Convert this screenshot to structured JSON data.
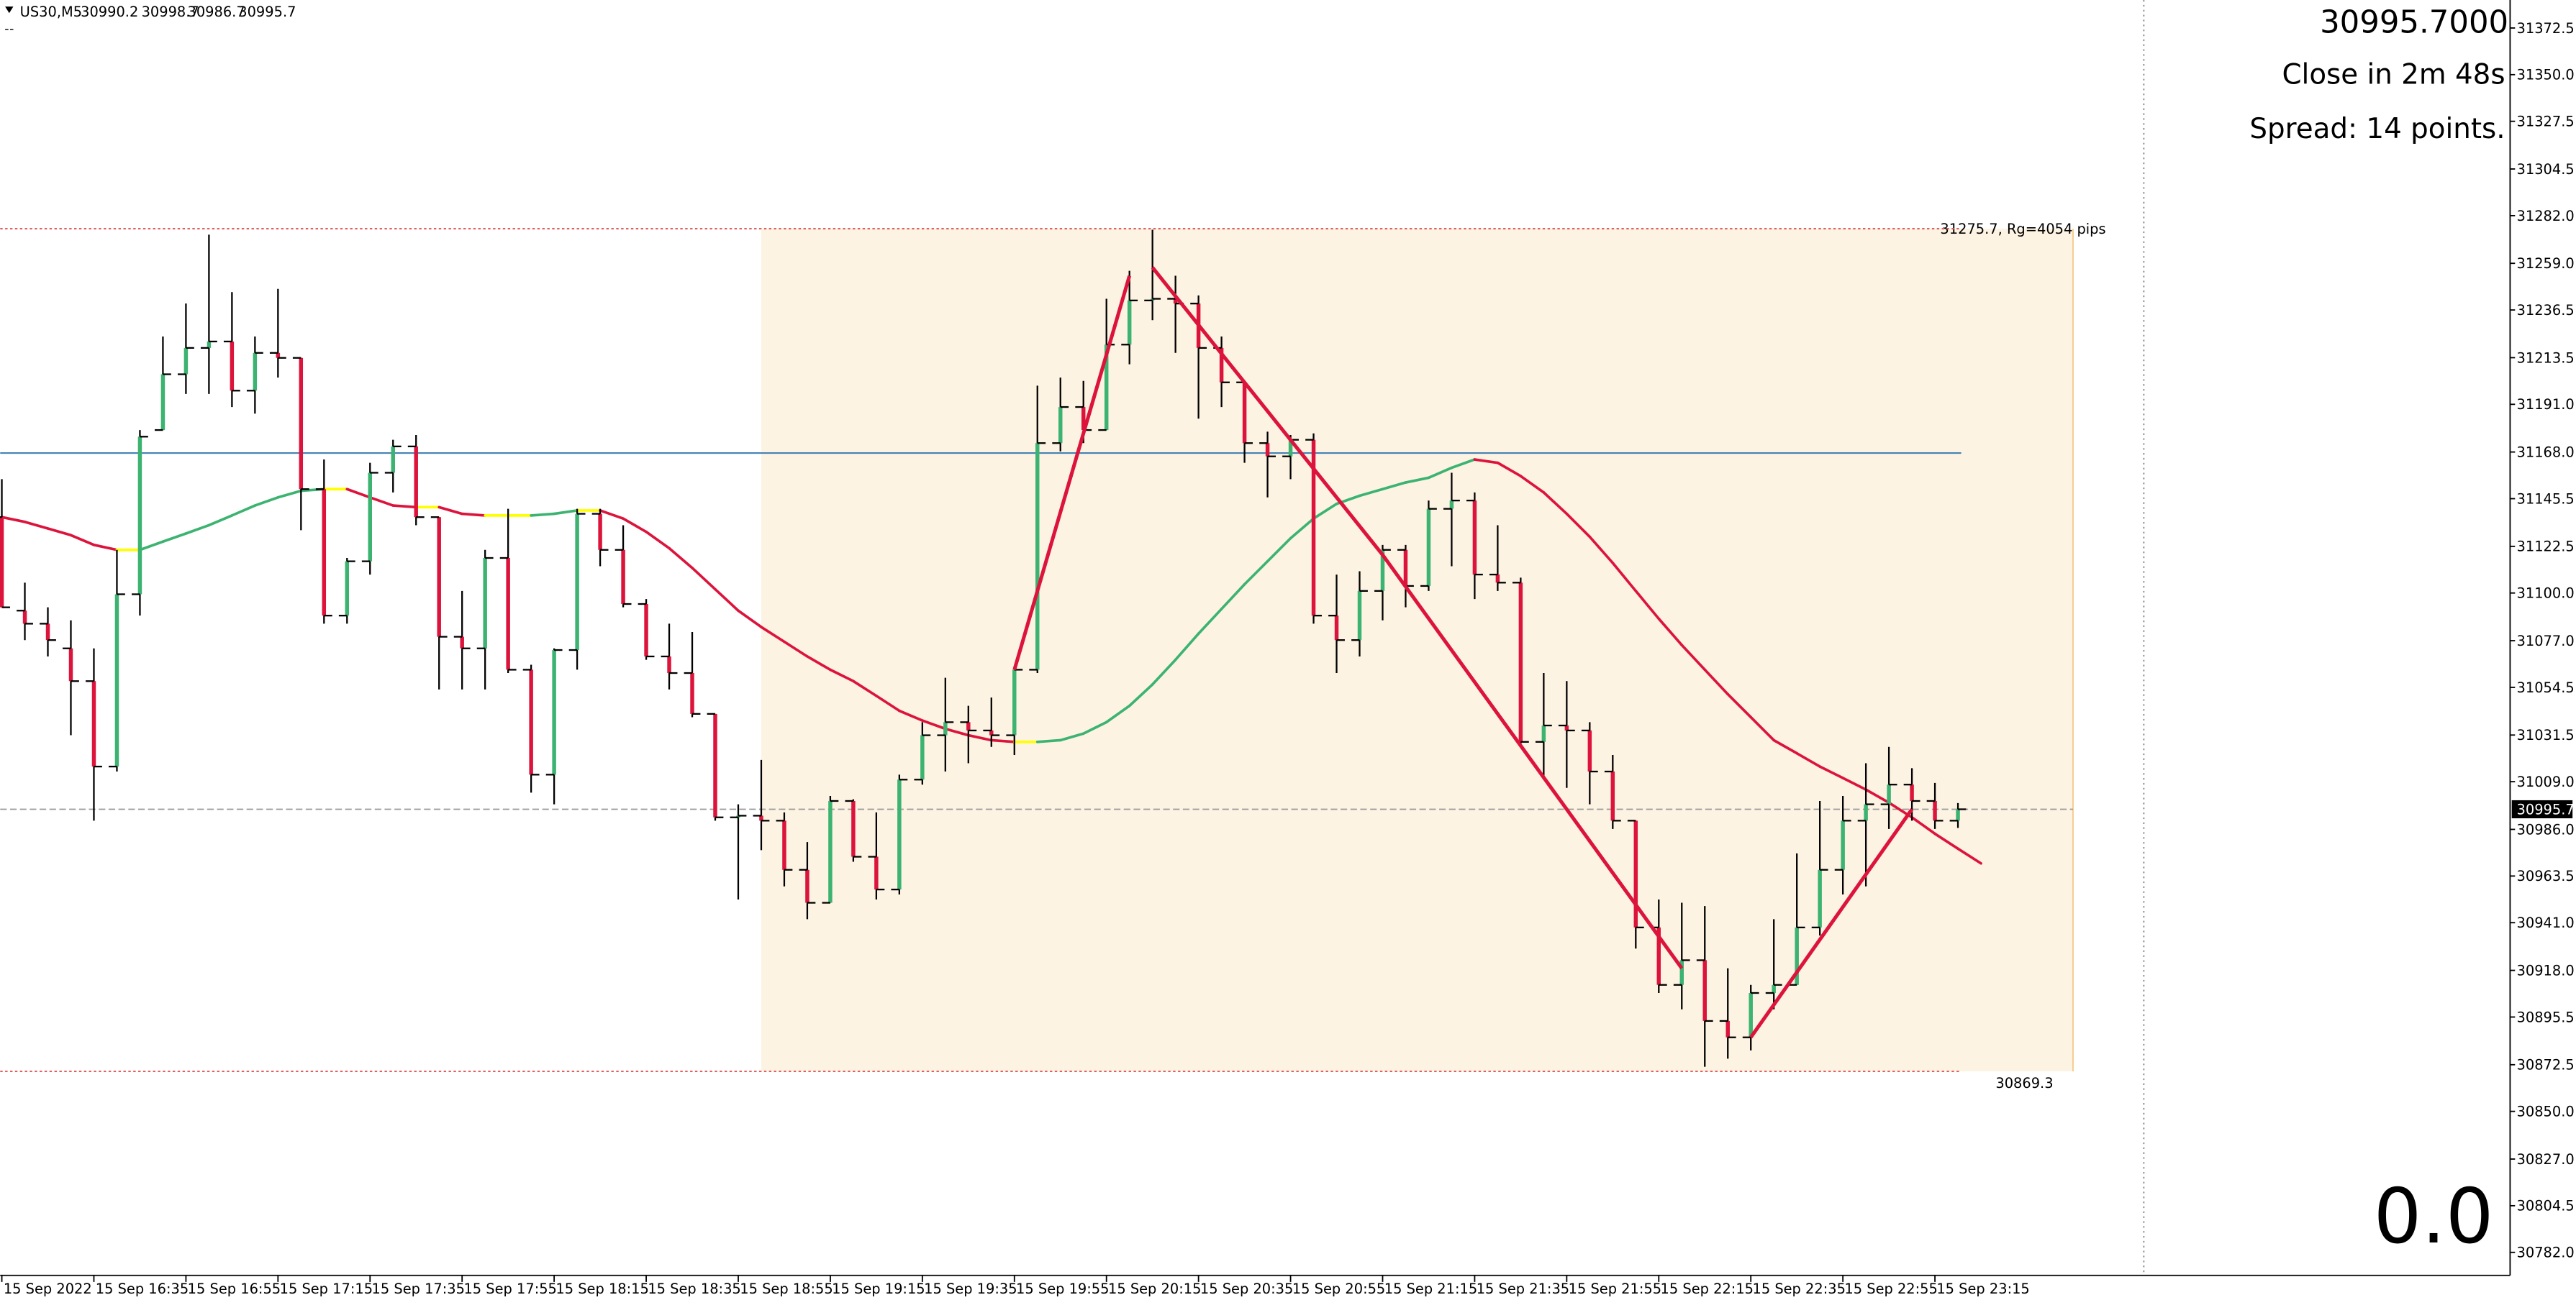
{
  "chart_data": {
    "type": "ohlc",
    "symbol": "US30,M5",
    "categories": [
      "15 Sep 2022",
      null,
      null,
      null,
      "15 Sep 16:35",
      null,
      null,
      null,
      "15 Sep 16:55",
      null,
      null,
      null,
      "15 Sep 17:15",
      null,
      null,
      null,
      "15 Sep 17:35",
      null,
      null,
      null,
      "15 Sep 17:55",
      null,
      null,
      null,
      "15 Sep 18:15",
      null,
      null,
      null,
      "15 Sep 18:35",
      null,
      null,
      null,
      "15 Sep 18:55",
      null,
      null,
      null,
      "15 Sep 19:15",
      null,
      null,
      null,
      "15 Sep 19:35",
      null,
      null,
      null,
      "15 Sep 19:55",
      null,
      null,
      null,
      "15 Sep 20:15",
      null,
      null,
      null,
      "15 Sep 20:35",
      null,
      null,
      null,
      "15 Sep 20:55",
      null,
      null,
      null,
      "15 Sep 21:15",
      null,
      null,
      null,
      "15 Sep 21:35",
      null,
      null,
      null,
      "15 Sep 21:55",
      null,
      null,
      null,
      "15 Sep 22:15",
      null,
      null,
      null,
      "15 Sep 22:35",
      null,
      null,
      null,
      "15 Sep 22:55",
      null,
      null,
      null,
      "15 Sep 23:15",
      null
    ],
    "open": [
      31136.6,
      31091.5,
      31085.2,
      31073.3,
      31057.5,
      31016.3,
      31099.4,
      31178.6,
      31205.5,
      31218.2,
      31221.3,
      31197.6,
      31215.8,
      31213.4,
      31150.1,
      31089.1,
      31115.3,
      31158.0,
      31170.7,
      31136.6,
      31078.9,
      31073.3,
      31116.9,
      31063.0,
      31012.4,
      31072.5,
      31138.2,
      31120.8,
      31094.7,
      31069.4,
      31061.4,
      31041.7,
      30991.8,
      30992.6,
      30990.2,
      30966.5,
      30950.6,
      30999.7,
      30972.8,
      30957.0,
      31010.0,
      31031.4,
      31037.7,
      31033.7,
      31031.4,
      31063.0,
      31172.3,
      31189.7,
      31178.6,
      31219.8,
      31241.1,
      31241.9,
      31239.6,
      31218.2,
      31201.6,
      31172.3,
      31165.9,
      31173.9,
      31089.1,
      31077.3,
      31101.0,
      31120.8,
      31103.4,
      31140.6,
      31144.6,
      31108.9,
      31105.0,
      31028.2,
      31036.1,
      31033.7,
      31013.9,
      30990.2,
      30938.7,
      30911.0,
      30922.9,
      30893.6,
      30885.7,
      30907.1,
      30911.0,
      30938.7,
      30966.5,
      30990.2,
      30998.1,
      31007.6,
      30999.7,
      30990.2
    ],
    "high": [
      31154.9,
      31105.0,
      31093.1,
      31086.8,
      31073.3,
      31120.8,
      31178.6,
      31223.7,
      31239.6,
      31272.8,
      31245.1,
      31223.7,
      31246.7,
      31213.4,
      31164.4,
      31116.9,
      31162.8,
      31173.9,
      31176.2,
      31136.6,
      31101.0,
      31120.8,
      31140.6,
      31065.4,
      31073.3,
      31140.6,
      31140.6,
      31132.7,
      31097.1,
      31085.2,
      31081.2,
      31041.7,
      30998.1,
      31019.5,
      30994.2,
      30979.9,
      31002.1,
      31000.5,
      30994.2,
      31012.4,
      31037.7,
      31059.1,
      31045.6,
      31049.6,
      31063.0,
      31200.0,
      31203.9,
      31202.3,
      31241.9,
      31255.4,
      31275.2,
      31253.0,
      31243.5,
      31223.7,
      31201.6,
      31177.8,
      31176.2,
      31177.0,
      31108.9,
      31110.5,
      31123.2,
      31123.2,
      31144.6,
      31158.0,
      31148.5,
      31132.7,
      31107.4,
      31061.4,
      31057.5,
      31037.7,
      31021.9,
      30990.2,
      30952.2,
      30950.6,
      30949.0,
      30919.0,
      30911.0,
      30942.7,
      30974.4,
      30999.7,
      31002.1,
      31017.9,
      31025.8,
      31015.5,
      31008.4,
      30998.7
    ],
    "low": [
      31093.1,
      31077.3,
      31069.4,
      31031.4,
      30990.2,
      31013.9,
      31089.1,
      31178.6,
      31196.0,
      31196.0,
      31189.7,
      31186.5,
      31203.9,
      31130.3,
      31085.2,
      31085.2,
      31108.9,
      31148.5,
      31132.7,
      31053.5,
      31053.5,
      31053.5,
      31061.4,
      31003.7,
      30998.1,
      31063.0,
      31112.9,
      31093.1,
      31067.8,
      31053.5,
      31040.1,
      30990.2,
      30952.2,
      30976.0,
      30958.5,
      30942.7,
      30950.6,
      30970.4,
      30952.2,
      30954.6,
      31007.6,
      31013.9,
      31017.9,
      31025.8,
      31021.9,
      31061.4,
      31168.3,
      31172.3,
      31178.6,
      31210.3,
      31231.6,
      31215.8,
      31184.1,
      31189.7,
      31162.8,
      31146.1,
      31154.9,
      31085.2,
      31061.4,
      31069.4,
      31086.8,
      31093.1,
      31101.0,
      31112.9,
      31097.1,
      31101.0,
      31025.8,
      31010.0,
      31006.0,
      30998.1,
      30986.2,
      30928.5,
      30907.1,
      30899.2,
      30871.5,
      30875.4,
      30879.4,
      30899.2,
      30911.0,
      30934.8,
      30954.6,
      30958.5,
      30986.2,
      30990.2,
      30986.2,
      30986.7
    ],
    "close": [
      31093.1,
      31085.2,
      31077.3,
      31057.5,
      31016.3,
      31099.4,
      31175.4,
      31205.5,
      31218.2,
      31221.3,
      31197.6,
      31215.8,
      31213.4,
      31150.1,
      31089.1,
      31115.3,
      31158.0,
      31170.7,
      31136.6,
      31078.9,
      31073.3,
      31116.9,
      31063.0,
      31012.4,
      31072.5,
      31138.2,
      31120.8,
      31094.7,
      31069.4,
      31061.4,
      31041.7,
      30991.8,
      30992.6,
      30990.2,
      30966.5,
      30950.6,
      30999.7,
      30972.8,
      30957.0,
      31010.0,
      31031.4,
      31037.7,
      31033.7,
      31031.4,
      31063.0,
      31172.3,
      31189.7,
      31178.6,
      31219.8,
      31241.1,
      31241.9,
      31239.6,
      31218.2,
      31201.6,
      31172.3,
      31165.9,
      31173.9,
      31089.1,
      31077.3,
      31101.0,
      31120.8,
      31103.4,
      31140.6,
      31144.6,
      31108.9,
      31105.0,
      31028.2,
      31036.1,
      31033.7,
      31013.9,
      30990.2,
      30938.7,
      30911.0,
      30922.9,
      30893.6,
      30885.7,
      30907.1,
      30911.0,
      30938.7,
      30966.5,
      30990.2,
      30998.1,
      31007.6,
      30999.7,
      30990.2,
      30995.7
    ],
    "bar_color": "#000000",
    "up_color": "#3cb371",
    "down_color": "#dc143c",
    "ma": {
      "values": [
        31136.6,
        31134.3,
        31131.1,
        31127.9,
        31123.2,
        31120.8,
        31120.8,
        31124.8,
        31128.7,
        31132.7,
        31137.4,
        31142.2,
        31146.1,
        31149.3,
        31150.1,
        31150.1,
        31146.1,
        31142.2,
        31141.4,
        31141.4,
        31138.2,
        31137.4,
        31137.4,
        31137.4,
        31138.2,
        31139.8,
        31139.8,
        31135.9,
        31129.5,
        31121.6,
        31112.1,
        31101.8,
        31091.5,
        31083.6,
        31076.5,
        31069.4,
        31063.0,
        31057.5,
        31050.4,
        31043.2,
        31038.5,
        31034.5,
        31031.4,
        31029.0,
        31028.2,
        31028.2,
        31029.0,
        31032.2,
        31037.7,
        31045.6,
        31055.9,
        31067.8,
        31080.4,
        31092.3,
        31104.2,
        31115.3,
        31126.4,
        31135.9,
        31143.0,
        31146.9,
        31150.1,
        31153.3,
        31155.6,
        31160.4,
        31164.4,
        31162.8,
        31156.4,
        31148.5,
        31138.2,
        31127.1,
        31114.5,
        31101.0,
        31087.6,
        31074.9,
        31063.0,
        31051.2,
        31040.1,
        31029.0,
        31022.7,
        31016.3,
        31010.8,
        31005.2,
        30998.9,
        30991.8,
        30983.9,
        30976.7,
        30969.6
      ],
      "up_color": "#3cb371",
      "down_color": "#dc143c",
      "flat_color": "#ffff00"
    },
    "zigzag": {
      "color": "#dc143c",
      "x": [
        44,
        49,
        null,
        50,
        60,
        73,
        null,
        76,
        83
      ],
      "values": [
        31063.0,
        31253.0,
        null,
        31257.0,
        31118.4,
        30919.0,
        null,
        30885.7,
        30995.7
      ]
    },
    "range_box": {
      "x": [
        33,
        90
      ],
      "ylim": [
        30869.3,
        31275.7
      ],
      "color": "#fdf3e3",
      "label": "31275.7, Rg=4054 pips"
    },
    "hlines": [
      {
        "value": 31167.5,
        "color": "#4682b4",
        "style": "solid"
      },
      {
        "value": 31275.7,
        "color": "#e06060",
        "style": "dotted"
      },
      {
        "value": 30869.3,
        "color": "#e06060",
        "style": "dotted"
      }
    ],
    "ylim": [
      30770.9,
      31386.0
    ],
    "yticks": [
      31372.5,
      {
        "value": 31350,
        "label": "31350.0"
      },
      31327.5,
      31304.5,
      {
        "value": 31282,
        "label": "31282.0"
      },
      {
        "value": 31259,
        "label": "31259.0"
      },
      31236.5,
      31213.5,
      {
        "value": 31191,
        "label": "31191.0"
      },
      {
        "value": 31168,
        "label": "31168.0"
      },
      31145.5,
      31122.5,
      {
        "value": 31100,
        "label": "31100.0"
      },
      {
        "value": 31077,
        "label": "31077.0"
      },
      31054.5,
      31031.5,
      {
        "value": 31009,
        "label": "31009.0"
      },
      {
        "value": 30986,
        "label": "30986.0"
      },
      30963.5,
      {
        "value": 30941,
        "label": "30941.0"
      },
      {
        "value": 30918,
        "label": "30918.0"
      },
      30895.5,
      30872.5,
      {
        "value": 30850,
        "label": "30850.0"
      },
      {
        "value": 30827,
        "label": "30827.0"
      },
      30804.5,
      {
        "value": 30782,
        "label": "30782.0"
      }
    ],
    "price_display": "30995.7000",
    "timer": "Close in 2m 48s",
    "spread": "Spread: 14 points.",
    "counter": "0.0",
    "counter_color": "#32cd32"
  }
}
